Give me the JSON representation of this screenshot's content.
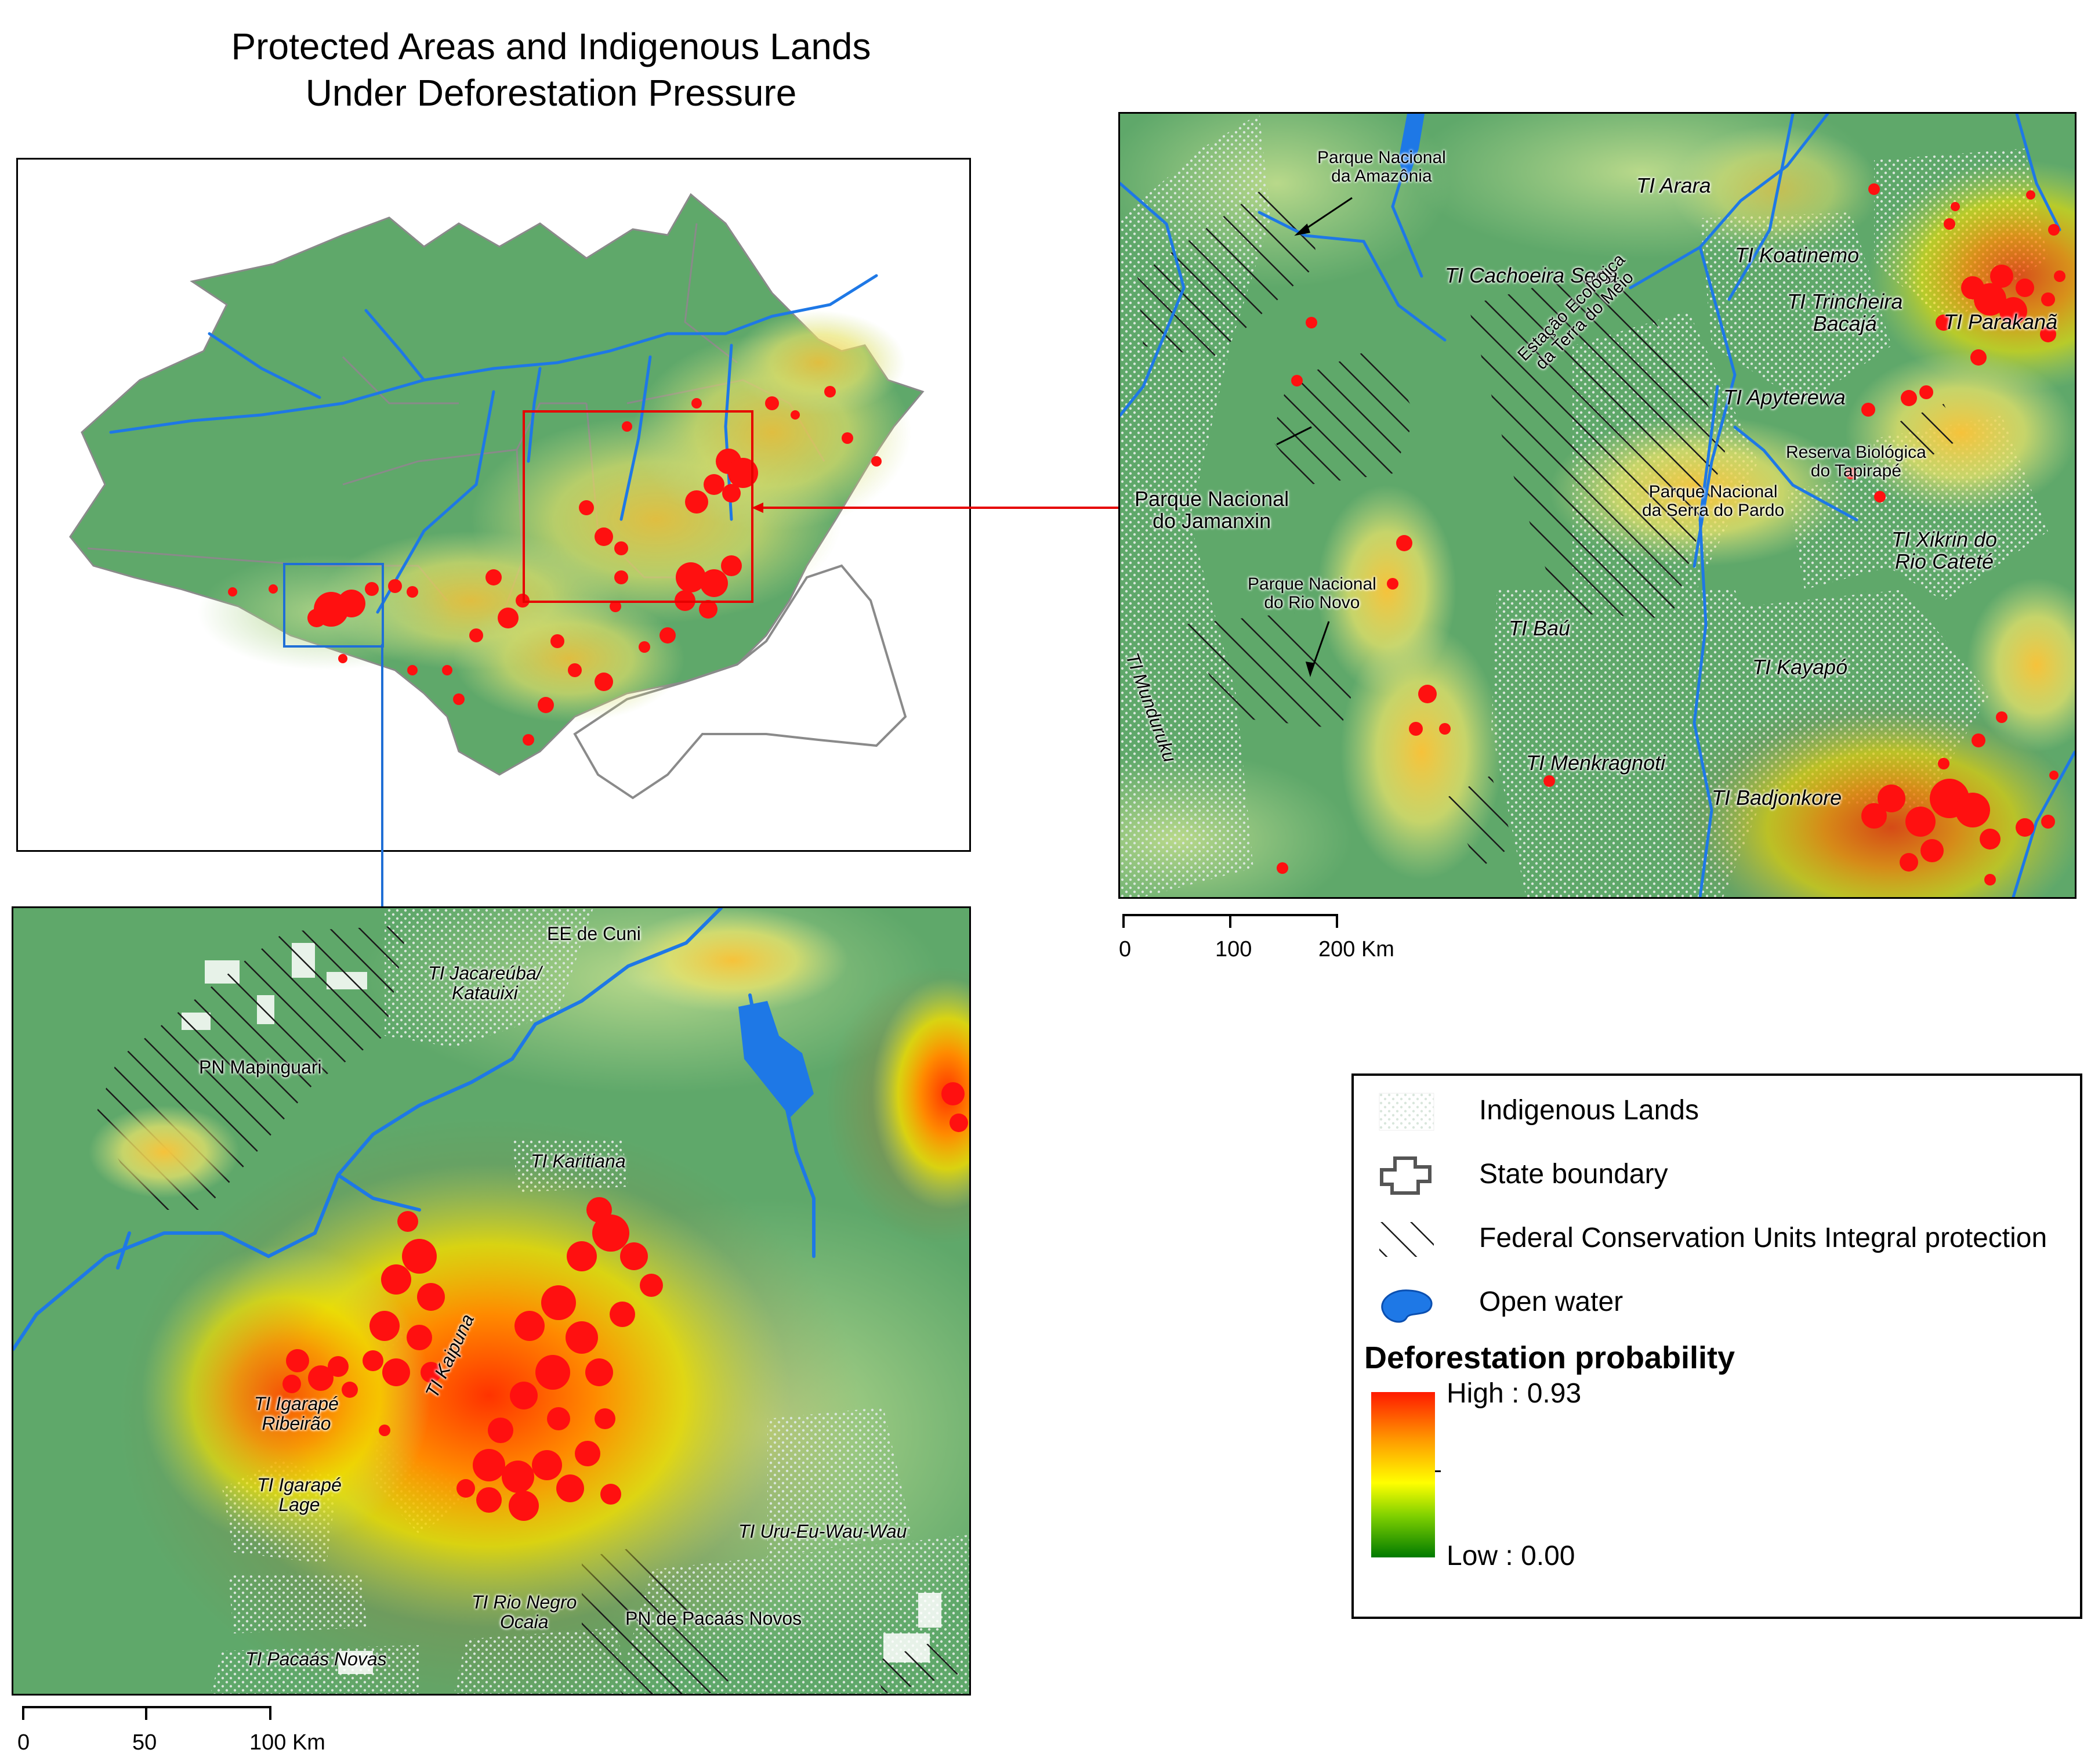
{
  "title": {
    "line1": "Protected Areas and Indigenous Lands",
    "line2": "Under Deforestation Pressure"
  },
  "colors": {
    "forest": "#5fa86a",
    "hotspot": "#ff1010",
    "water": "#1e78e6",
    "box_red": "#e60000",
    "box_blue": "#1f6fd6"
  },
  "right_map": {
    "labels": [
      "Parque Nacional\nda Amazônia",
      "TI Arara",
      "TI Koatinemo",
      "TI Cachoeira Seca",
      "TI Trincheira\nBacajá",
      "TI Parakanã",
      "Estação Ecológica\nda Terra do Meio",
      "TI Apyterewa",
      "Reserva Biológica\ndo Tapirapé",
      "Parque Nacional\ndo Jamanxin",
      "Parque Nacional\nda Serra do Pardo",
      "TI Xikrin do\nRio Cateté",
      "Parque Nacional\ndo Rio Novo",
      "TI Baú",
      "TI Munduruku",
      "TI Kayapó",
      "TI Menkragnoti",
      "TI Badjonkore"
    ],
    "scale": [
      "0",
      "100",
      "200 Km"
    ]
  },
  "bottom_map": {
    "labels": [
      "EE de Cuni",
      "TI Jacareúba/\nKatauixi",
      "PN Mapinguari",
      "TI Karitiana",
      "TI Kaipuna",
      "TI Igarapé\nRibeirão",
      "TI Igarapé\nLage",
      "TI Uru-Eu-Wau-Wau",
      "TI Rio Negro\nOcaia",
      "PN de Pacaás Novos",
      "TI Pacaás Novas"
    ],
    "scale": [
      "0",
      "50",
      "100 Km"
    ]
  },
  "legend": {
    "items": [
      {
        "label": "Indigenous Lands",
        "icon": "dot-pattern-icon"
      },
      {
        "label": "State boundary",
        "icon": "state-outline-icon"
      },
      {
        "label": "Federal Conservation Units Integral protection",
        "icon": "hatch-pattern-icon"
      },
      {
        "label": "Open water",
        "icon": "water-blob-icon"
      }
    ],
    "ramp_title": "Deforestation probability",
    "high": "High : 0.93",
    "low": "Low : 0.00"
  }
}
